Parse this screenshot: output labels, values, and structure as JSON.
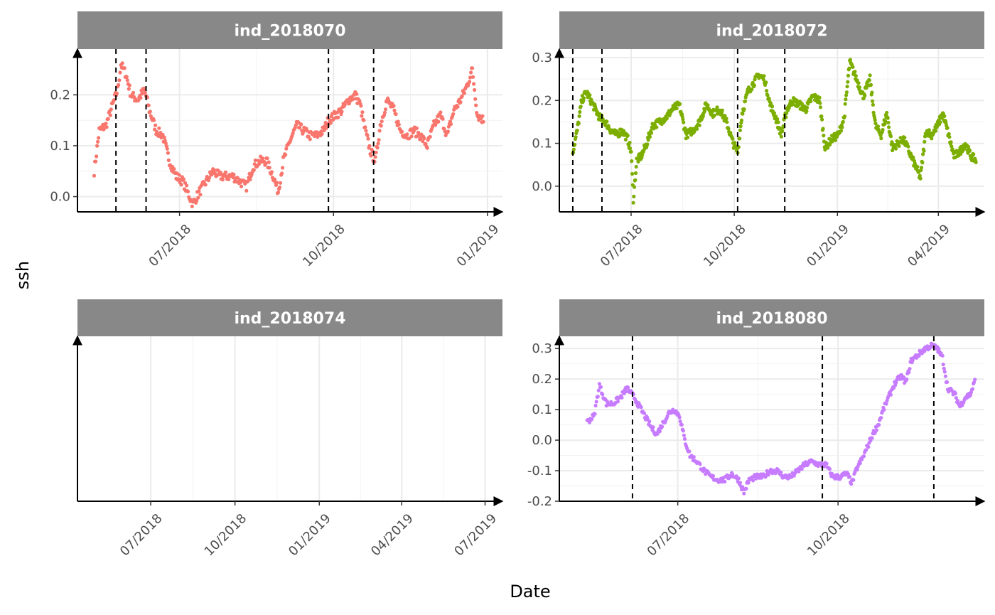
{
  "xlabel": "Date",
  "ylabel": "ssh",
  "chart_data": [
    {
      "type": "scatter",
      "title": "ind_2018070",
      "color": "#F8766D",
      "xlim": [
        "2018-05-01",
        "2019-01-10"
      ],
      "ylim": [
        -0.03,
        0.29
      ],
      "x_ticks": [
        "2018-07-01",
        "2018-10-01",
        "2019-01-01"
      ],
      "x_tick_labels": [
        "07/2018",
        "10/2018",
        "01/2019"
      ],
      "y_ticks": [
        0.0,
        0.1,
        0.2
      ],
      "y_tick_labels": [
        "0.0",
        "0.1",
        "0.2"
      ],
      "vlines": [
        "2018-05-24",
        "2018-06-11",
        "2018-09-28",
        "2018-10-25"
      ],
      "series_anchors": [
        [
          "2018-05-11",
          0.05
        ],
        [
          "2018-05-14",
          0.13
        ],
        [
          "2018-05-18",
          0.14
        ],
        [
          "2018-05-22",
          0.18
        ],
        [
          "2018-05-25",
          0.21
        ],
        [
          "2018-05-27",
          0.26
        ],
        [
          "2018-05-30",
          0.24
        ],
        [
          "2018-06-02",
          0.2
        ],
        [
          "2018-06-06",
          0.19
        ],
        [
          "2018-06-10",
          0.21
        ],
        [
          "2018-06-13",
          0.17
        ],
        [
          "2018-06-17",
          0.13
        ],
        [
          "2018-06-21",
          0.12
        ],
        [
          "2018-06-25",
          0.07
        ],
        [
          "2018-06-29",
          0.04
        ],
        [
          "2018-07-03",
          0.03
        ],
        [
          "2018-07-07",
          0.0
        ],
        [
          "2018-07-09",
          -0.015
        ],
        [
          "2018-07-13",
          0.01
        ],
        [
          "2018-07-17",
          0.03
        ],
        [
          "2018-07-21",
          0.05
        ],
        [
          "2018-07-25",
          0.04
        ],
        [
          "2018-07-29",
          0.04
        ],
        [
          "2018-08-02",
          0.04
        ],
        [
          "2018-08-06",
          0.03
        ],
        [
          "2018-08-10",
          0.02
        ],
        [
          "2018-08-14",
          0.06
        ],
        [
          "2018-08-18",
          0.07
        ],
        [
          "2018-08-22",
          0.07
        ],
        [
          "2018-08-26",
          0.04
        ],
        [
          "2018-08-29",
          0.01
        ],
        [
          "2018-09-01",
          0.07
        ],
        [
          "2018-09-05",
          0.11
        ],
        [
          "2018-09-09",
          0.14
        ],
        [
          "2018-09-13",
          0.13
        ],
        [
          "2018-09-17",
          0.12
        ],
        [
          "2018-09-21",
          0.12
        ],
        [
          "2018-09-25",
          0.13
        ],
        [
          "2018-09-28",
          0.15
        ],
        [
          "2018-10-02",
          0.16
        ],
        [
          "2018-10-06",
          0.17
        ],
        [
          "2018-10-10",
          0.19
        ],
        [
          "2018-10-14",
          0.2
        ],
        [
          "2018-10-17",
          0.18
        ],
        [
          "2018-10-20",
          0.13
        ],
        [
          "2018-10-23",
          0.09
        ],
        [
          "2018-10-26",
          0.07
        ],
        [
          "2018-10-29",
          0.14
        ],
        [
          "2018-11-02",
          0.19
        ],
        [
          "2018-11-06",
          0.17
        ],
        [
          "2018-11-10",
          0.13
        ],
        [
          "2018-11-14",
          0.12
        ],
        [
          "2018-11-18",
          0.13
        ],
        [
          "2018-11-22",
          0.12
        ],
        [
          "2018-11-26",
          0.1
        ],
        [
          "2018-11-30",
          0.14
        ],
        [
          "2018-12-04",
          0.16
        ],
        [
          "2018-12-08",
          0.12
        ],
        [
          "2018-12-12",
          0.17
        ],
        [
          "2018-12-16",
          0.19
        ],
        [
          "2018-12-20",
          0.22
        ],
        [
          "2018-12-23",
          0.25
        ],
        [
          "2018-12-26",
          0.16
        ],
        [
          "2018-12-30",
          0.15
        ]
      ]
    },
    {
      "type": "scatter",
      "title": "ind_2018072",
      "color": "#7CAE00",
      "xlim": [
        "2018-04-28",
        "2019-05-12"
      ],
      "ylim": [
        -0.06,
        0.32
      ],
      "x_ticks": [
        "2018-07-01",
        "2018-10-01",
        "2019-01-01",
        "2019-04-01"
      ],
      "x_tick_labels": [
        "07/2018",
        "10/2018",
        "01/2019",
        "04/2019"
      ],
      "y_ticks": [
        0.0,
        0.1,
        0.2,
        0.3
      ],
      "y_tick_labels": [
        "0.0",
        "0.1",
        "0.2",
        "0.3"
      ],
      "vlines": [
        "2018-05-10",
        "2018-06-05",
        "2018-10-04",
        "2018-11-15"
      ],
      "series_anchors": [
        [
          "2018-05-10",
          0.08
        ],
        [
          "2018-05-14",
          0.13
        ],
        [
          "2018-05-18",
          0.2
        ],
        [
          "2018-05-22",
          0.22
        ],
        [
          "2018-05-26",
          0.2
        ],
        [
          "2018-05-30",
          0.18
        ],
        [
          "2018-06-03",
          0.16
        ],
        [
          "2018-06-08",
          0.15
        ],
        [
          "2018-06-13",
          0.13
        ],
        [
          "2018-06-18",
          0.12
        ],
        [
          "2018-06-23",
          0.13
        ],
        [
          "2018-06-28",
          0.11
        ],
        [
          "2018-07-01",
          0.08
        ],
        [
          "2018-07-03",
          -0.03
        ],
        [
          "2018-07-06",
          0.06
        ],
        [
          "2018-07-10",
          0.07
        ],
        [
          "2018-07-15",
          0.1
        ],
        [
          "2018-07-20",
          0.14
        ],
        [
          "2018-07-26",
          0.15
        ],
        [
          "2018-08-01",
          0.16
        ],
        [
          "2018-08-07",
          0.18
        ],
        [
          "2018-08-13",
          0.19
        ],
        [
          "2018-08-19",
          0.12
        ],
        [
          "2018-08-25",
          0.13
        ],
        [
          "2018-08-31",
          0.15
        ],
        [
          "2018-09-06",
          0.19
        ],
        [
          "2018-09-12",
          0.17
        ],
        [
          "2018-09-18",
          0.18
        ],
        [
          "2018-09-24",
          0.15
        ],
        [
          "2018-09-30",
          0.1
        ],
        [
          "2018-10-04",
          0.08
        ],
        [
          "2018-10-08",
          0.17
        ],
        [
          "2018-10-13",
          0.22
        ],
        [
          "2018-10-18",
          0.24
        ],
        [
          "2018-10-23",
          0.26
        ],
        [
          "2018-10-28",
          0.25
        ],
        [
          "2018-11-02",
          0.19
        ],
        [
          "2018-11-07",
          0.16
        ],
        [
          "2018-11-12",
          0.12
        ],
        [
          "2018-11-17",
          0.18
        ],
        [
          "2018-11-22",
          0.2
        ],
        [
          "2018-11-28",
          0.19
        ],
        [
          "2018-12-04",
          0.18
        ],
        [
          "2018-12-10",
          0.21
        ],
        [
          "2018-12-16",
          0.2
        ],
        [
          "2018-12-21",
          0.09
        ],
        [
          "2018-12-27",
          0.11
        ],
        [
          "2019-01-02",
          0.12
        ],
        [
          "2019-01-07",
          0.16
        ],
        [
          "2019-01-12",
          0.29
        ],
        [
          "2019-01-18",
          0.25
        ],
        [
          "2019-01-24",
          0.21
        ],
        [
          "2019-01-30",
          0.25
        ],
        [
          "2019-02-04",
          0.14
        ],
        [
          "2019-02-09",
          0.12
        ],
        [
          "2019-02-14",
          0.17
        ],
        [
          "2019-02-19",
          0.09
        ],
        [
          "2019-02-24",
          0.1
        ],
        [
          "2019-03-01",
          0.11
        ],
        [
          "2019-03-06",
          0.08
        ],
        [
          "2019-03-11",
          0.05
        ],
        [
          "2019-03-16",
          0.02
        ],
        [
          "2019-03-21",
          0.13
        ],
        [
          "2019-03-26",
          0.12
        ],
        [
          "2019-03-31",
          0.14
        ],
        [
          "2019-04-05",
          0.17
        ],
        [
          "2019-04-10",
          0.12
        ],
        [
          "2019-04-15",
          0.07
        ],
        [
          "2019-04-20",
          0.08
        ],
        [
          "2019-04-25",
          0.1
        ],
        [
          "2019-04-30",
          0.07
        ],
        [
          "2019-05-05",
          0.06
        ]
      ]
    },
    {
      "type": "scatter",
      "title": "ind_2018074",
      "color": "#00BFC4",
      "xlim": [
        "2018-04-12",
        "2019-07-20"
      ],
      "ylim": [
        0,
        1
      ],
      "x_ticks": [
        "2018-07-01",
        "2018-10-01",
        "2019-01-01",
        "2019-04-01",
        "2019-07-01"
      ],
      "x_tick_labels": [
        "07/2018",
        "10/2018",
        "01/2019",
        "04/2019",
        "07/2019"
      ],
      "y_ticks": [],
      "y_tick_labels": [],
      "vlines": [],
      "series_anchors": []
    },
    {
      "type": "scatter",
      "title": "ind_2018080",
      "color": "#C77CFF",
      "xlim": [
        "2018-04-24",
        "2018-12-24"
      ],
      "ylim": [
        -0.2,
        0.34
      ],
      "x_ticks": [
        "2018-07-01",
        "2018-10-01"
      ],
      "x_tick_labels": [
        "07/2018",
        "10/2018"
      ],
      "y_ticks": [
        -0.2,
        -0.1,
        0.0,
        0.1,
        0.2,
        0.3
      ],
      "y_tick_labels": [
        "-0.2",
        "-0.1",
        "0.0",
        "0.1",
        "0.2",
        "0.3"
      ],
      "vlines": [
        "2018-06-05",
        "2018-09-22",
        "2018-11-25"
      ],
      "series_anchors": [
        [
          "2018-05-10",
          0.06
        ],
        [
          "2018-05-14",
          0.08
        ],
        [
          "2018-05-17",
          0.18
        ],
        [
          "2018-05-21",
          0.12
        ],
        [
          "2018-05-25",
          0.12
        ],
        [
          "2018-05-29",
          0.14
        ],
        [
          "2018-06-02",
          0.17
        ],
        [
          "2018-06-06",
          0.14
        ],
        [
          "2018-06-10",
          0.1
        ],
        [
          "2018-06-13",
          0.07
        ],
        [
          "2018-06-16",
          0.04
        ],
        [
          "2018-06-19",
          0.02
        ],
        [
          "2018-06-22",
          0.05
        ],
        [
          "2018-06-26",
          0.09
        ],
        [
          "2018-06-29",
          0.1
        ],
        [
          "2018-07-02",
          0.08
        ],
        [
          "2018-07-05",
          0.0
        ],
        [
          "2018-07-08",
          -0.05
        ],
        [
          "2018-07-12",
          -0.07
        ],
        [
          "2018-07-16",
          -0.1
        ],
        [
          "2018-07-20",
          -0.12
        ],
        [
          "2018-07-24",
          -0.13
        ],
        [
          "2018-07-28",
          -0.13
        ],
        [
          "2018-08-01",
          -0.11
        ],
        [
          "2018-08-05",
          -0.13
        ],
        [
          "2018-08-08",
          -0.17
        ],
        [
          "2018-08-11",
          -0.13
        ],
        [
          "2018-08-15",
          -0.12
        ],
        [
          "2018-08-19",
          -0.12
        ],
        [
          "2018-08-23",
          -0.1
        ],
        [
          "2018-08-27",
          -0.1
        ],
        [
          "2018-08-31",
          -0.12
        ],
        [
          "2018-09-04",
          -0.12
        ],
        [
          "2018-09-08",
          -0.1
        ],
        [
          "2018-09-12",
          -0.08
        ],
        [
          "2018-09-16",
          -0.07
        ],
        [
          "2018-09-20",
          -0.08
        ],
        [
          "2018-09-24",
          -0.08
        ],
        [
          "2018-09-28",
          -0.12
        ],
        [
          "2018-10-02",
          -0.12
        ],
        [
          "2018-10-06",
          -0.11
        ],
        [
          "2018-10-09",
          -0.14
        ],
        [
          "2018-10-12",
          -0.09
        ],
        [
          "2018-10-15",
          -0.06
        ],
        [
          "2018-10-18",
          -0.02
        ],
        [
          "2018-10-21",
          0.02
        ],
        [
          "2018-10-24",
          0.05
        ],
        [
          "2018-10-27",
          0.1
        ],
        [
          "2018-10-30",
          0.14
        ],
        [
          "2018-11-02",
          0.18
        ],
        [
          "2018-11-06",
          0.21
        ],
        [
          "2018-11-09",
          0.19
        ],
        [
          "2018-11-12",
          0.26
        ],
        [
          "2018-11-16",
          0.28
        ],
        [
          "2018-11-20",
          0.3
        ],
        [
          "2018-11-24",
          0.31
        ],
        [
          "2018-11-27",
          0.3
        ],
        [
          "2018-11-30",
          0.27
        ],
        [
          "2018-12-03",
          0.17
        ],
        [
          "2018-12-07",
          0.15
        ],
        [
          "2018-12-10",
          0.11
        ],
        [
          "2018-12-13",
          0.14
        ],
        [
          "2018-12-16",
          0.15
        ],
        [
          "2018-12-19",
          0.2
        ]
      ]
    }
  ]
}
